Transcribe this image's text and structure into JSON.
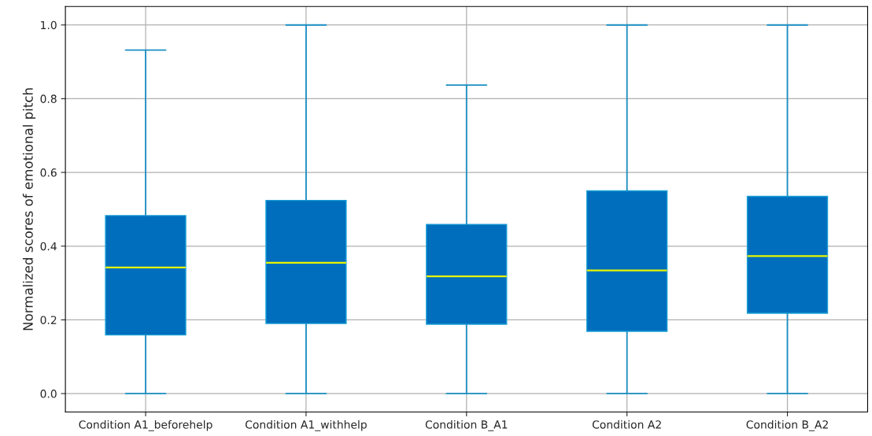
{
  "chart_data": {
    "type": "box",
    "ylabel": "Normalized scores of emotional pitch",
    "categories": [
      "Condition A1_beforehelp",
      "Condition A1_withhelp",
      "Condition B_A1",
      "Condition A2",
      "Condition B_A2"
    ],
    "series": [
      {
        "color": "#006ebd",
        "boxes": [
          {
            "low": 0.0,
            "q1": 0.159,
            "median": 0.342,
            "q3": 0.483,
            "high": 0.932
          },
          {
            "low": 0.0,
            "q1": 0.19,
            "median": 0.355,
            "q3": 0.524,
            "high": 1.0
          },
          {
            "low": 0.0,
            "q1": 0.188,
            "median": 0.318,
            "q3": 0.459,
            "high": 0.837
          },
          {
            "low": 0.0,
            "q1": 0.169,
            "median": 0.334,
            "q3": 0.55,
            "high": 1.0
          },
          {
            "low": 0.0,
            "q1": 0.218,
            "median": 0.373,
            "q3": 0.535,
            "high": 1.0
          }
        ]
      }
    ],
    "ylim": [
      -0.05,
      1.05
    ],
    "yticks": [
      {
        "value": 0,
        "label": "0.0"
      },
      {
        "value": 0.2,
        "label": "0.2"
      },
      {
        "value": 0.4,
        "label": "0.4"
      },
      {
        "value": 0.6,
        "label": "0.6"
      },
      {
        "value": 0.8,
        "label": "0.8"
      },
      {
        "value": 1,
        "label": "1.0"
      }
    ],
    "grid": true
  }
}
